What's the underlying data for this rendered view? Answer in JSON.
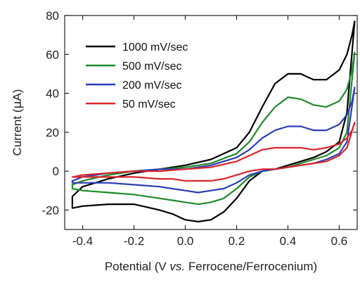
{
  "chart_data": {
    "type": "line",
    "xlabel_parts": [
      "Potential (V ",
      "vs.",
      " Ferrocene/Ferrocenium)"
    ],
    "ylabel_parts": [
      "Current (",
      "μ",
      "A)"
    ],
    "xlim": [
      -0.47,
      0.67
    ],
    "ylim": [
      -30,
      80
    ],
    "x_ticks": [
      -0.4,
      -0.2,
      0.0,
      0.2,
      0.4,
      0.6
    ],
    "x_tick_labels": [
      "-0.4",
      "-0.2",
      "0.0",
      "0.2",
      "0.4",
      "0.6"
    ],
    "y_ticks": [
      -20,
      0,
      20,
      40,
      60,
      80
    ],
    "y_tick_labels": [
      "-20",
      "0",
      "20",
      "40",
      "60",
      "80"
    ],
    "legend_position": "top-left",
    "series": [
      {
        "name": "1000 mV/sec",
        "color": "#000000",
        "x": [
          -0.44,
          -0.4,
          -0.3,
          -0.2,
          -0.1,
          0.0,
          0.1,
          0.2,
          0.25,
          0.3,
          0.35,
          0.4,
          0.45,
          0.5,
          0.55,
          0.6,
          0.63,
          0.65,
          0.66,
          0.63,
          0.6,
          0.55,
          0.5,
          0.45,
          0.4,
          0.35,
          0.3,
          0.25,
          0.2,
          0.15,
          0.1,
          0.05,
          0.0,
          -0.05,
          -0.1,
          -0.2,
          -0.3,
          -0.4,
          -0.44
        ],
        "y": [
          -13,
          -8,
          -4,
          -1,
          1,
          3,
          6,
          12,
          20,
          33,
          45,
          50,
          50,
          47,
          47,
          52,
          60,
          70,
          77,
          30,
          15,
          10,
          7,
          5,
          3,
          1,
          0,
          -5,
          -14,
          -21,
          -25,
          -26,
          -25,
          -22,
          -20,
          -17,
          -17,
          -18,
          -19
        ]
      },
      {
        "name": "500 mV/sec",
        "color": "#1f8a2a",
        "x": [
          -0.44,
          -0.4,
          -0.3,
          -0.2,
          -0.1,
          0.0,
          0.1,
          0.2,
          0.25,
          0.3,
          0.35,
          0.4,
          0.45,
          0.5,
          0.55,
          0.6,
          0.63,
          0.65,
          0.66,
          0.63,
          0.6,
          0.55,
          0.5,
          0.45,
          0.4,
          0.35,
          0.3,
          0.25,
          0.2,
          0.15,
          0.1,
          0.05,
          0.0,
          -0.05,
          -0.1,
          -0.2,
          -0.3,
          -0.4,
          -0.44
        ],
        "y": [
          -7,
          -5,
          -2,
          0,
          1,
          2,
          4,
          9,
          15,
          25,
          33,
          38,
          37,
          34,
          33,
          36,
          42,
          52,
          61,
          20,
          12,
          8,
          6,
          4,
          2,
          1,
          0,
          -3,
          -9,
          -14,
          -16,
          -17,
          -16,
          -15,
          -14,
          -12,
          -11,
          -10,
          -9
        ]
      },
      {
        "name": "200 mV/sec",
        "color": "#2b3cb8",
        "x": [
          -0.44,
          -0.4,
          -0.3,
          -0.2,
          -0.1,
          0.0,
          0.1,
          0.2,
          0.25,
          0.3,
          0.35,
          0.4,
          0.45,
          0.5,
          0.55,
          0.6,
          0.63,
          0.65,
          0.66,
          0.63,
          0.6,
          0.55,
          0.5,
          0.45,
          0.4,
          0.35,
          0.3,
          0.25,
          0.2,
          0.15,
          0.1,
          0.05,
          0.0,
          -0.05,
          -0.1,
          -0.2,
          -0.3,
          -0.4,
          -0.44
        ],
        "y": [
          -5,
          -3,
          -1,
          0,
          1,
          1,
          3,
          7,
          11,
          17,
          21,
          23,
          23,
          21,
          21,
          24,
          29,
          36,
          43,
          15,
          9,
          6,
          4,
          3,
          2,
          1,
          0,
          -2,
          -6,
          -9,
          -10,
          -11,
          -10,
          -9,
          -8,
          -7,
          -6,
          -6,
          -6
        ]
      },
      {
        "name": "50 mV/sec",
        "color": "#d9262a",
        "x": [
          -0.44,
          -0.4,
          -0.3,
          -0.2,
          -0.1,
          0.0,
          0.1,
          0.2,
          0.25,
          0.3,
          0.35,
          0.4,
          0.45,
          0.5,
          0.55,
          0.6,
          0.63,
          0.65,
          0.66,
          0.63,
          0.6,
          0.55,
          0.5,
          0.45,
          0.4,
          0.35,
          0.3,
          0.25,
          0.2,
          0.15,
          0.1,
          0.05,
          0.0,
          -0.05,
          -0.1,
          -0.2,
          -0.3,
          -0.4,
          -0.44
        ],
        "y": [
          -3,
          -2,
          -1,
          0,
          0,
          1,
          2,
          5,
          8,
          11,
          12,
          12,
          12,
          11,
          12,
          14,
          17,
          21,
          25,
          12,
          8,
          5,
          4,
          3,
          2,
          1,
          1,
          0,
          -2,
          -4,
          -5,
          -5,
          -5,
          -4,
          -4,
          -3,
          -3,
          -3,
          -3
        ]
      }
    ]
  }
}
